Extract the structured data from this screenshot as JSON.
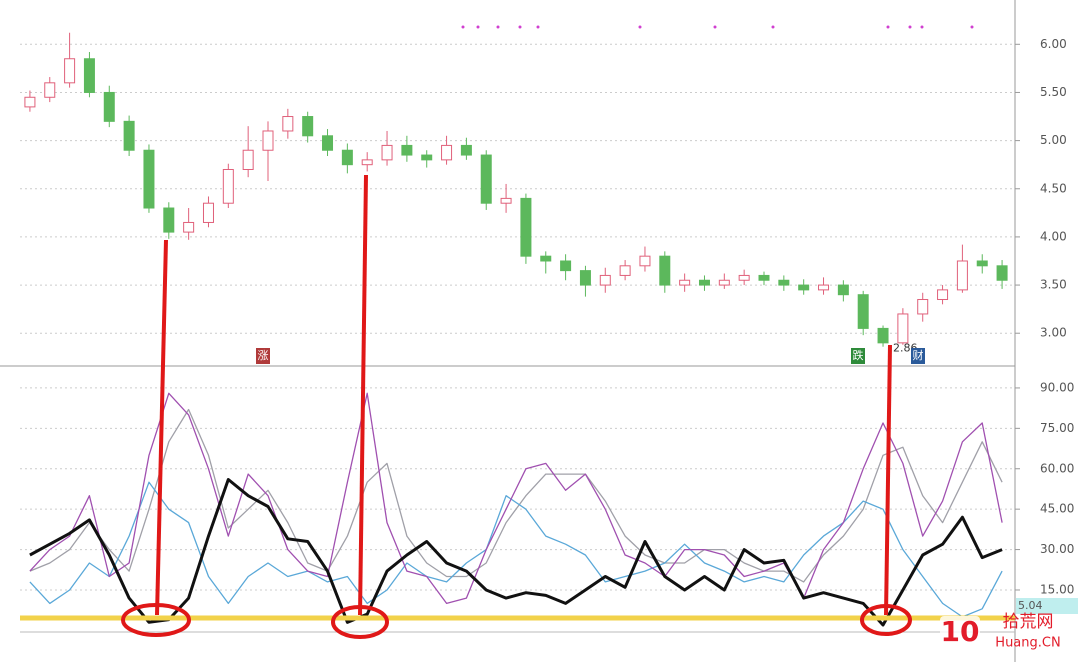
{
  "chart_data": [
    {
      "type": "candlestick",
      "up_color": "#e0607a",
      "down_color": "#5cb85c",
      "open": [
        5.35,
        5.45,
        5.6,
        5.85,
        5.5,
        5.2,
        4.9,
        4.3,
        4.05,
        4.15,
        4.35,
        4.7,
        4.9,
        5.1,
        5.25,
        5.05,
        4.9,
        4.75,
        4.8,
        4.95,
        4.85,
        4.8,
        4.95,
        4.85,
        4.35,
        4.4,
        3.8,
        3.75,
        3.65,
        3.5,
        3.6,
        3.7,
        3.8,
        3.5,
        3.55,
        3.5,
        3.55,
        3.6,
        3.55,
        3.5,
        3.45,
        3.5,
        3.4,
        3.05,
        2.9,
        3.2,
        3.35,
        3.45,
        3.75,
        3.7
      ],
      "high": [
        5.52,
        5.66,
        6.12,
        5.92,
        5.57,
        5.26,
        4.96,
        4.36,
        4.3,
        4.42,
        4.76,
        5.15,
        5.2,
        5.33,
        5.3,
        5.12,
        4.97,
        4.88,
        5.1,
        5.05,
        4.9,
        5.05,
        5.03,
        4.9,
        4.55,
        4.45,
        3.85,
        3.82,
        3.7,
        3.68,
        3.76,
        3.9,
        3.85,
        3.62,
        3.6,
        3.62,
        3.66,
        3.64,
        3.6,
        3.56,
        3.58,
        3.55,
        3.44,
        3.08,
        3.26,
        3.42,
        3.5,
        3.92,
        3.82,
        3.76
      ],
      "low": [
        5.3,
        5.4,
        5.55,
        5.45,
        5.14,
        4.84,
        4.25,
        3.98,
        3.97,
        4.1,
        4.3,
        4.62,
        4.58,
        5.02,
        4.98,
        4.84,
        4.66,
        4.68,
        4.74,
        4.78,
        4.72,
        4.75,
        4.8,
        4.28,
        4.25,
        3.72,
        3.62,
        3.55,
        3.38,
        3.42,
        3.55,
        3.64,
        3.42,
        3.43,
        3.44,
        3.46,
        3.5,
        3.5,
        3.44,
        3.4,
        3.4,
        3.33,
        2.98,
        2.86,
        2.88,
        3.12,
        3.3,
        3.42,
        3.62,
        3.46
      ],
      "close": [
        5.45,
        5.6,
        5.85,
        5.5,
        5.2,
        4.9,
        4.3,
        4.05,
        4.15,
        4.35,
        4.7,
        4.9,
        5.1,
        5.25,
        5.05,
        4.9,
        4.75,
        4.8,
        4.95,
        4.85,
        4.8,
        4.95,
        4.85,
        4.35,
        4.4,
        3.8,
        3.75,
        3.65,
        3.5,
        3.6,
        3.7,
        3.8,
        3.5,
        3.55,
        3.5,
        3.55,
        3.6,
        3.55,
        3.5,
        3.45,
        3.5,
        3.4,
        3.05,
        2.9,
        3.2,
        3.35,
        3.45,
        3.75,
        3.7,
        3.55
      ],
      "ylim": [
        2.67,
        6.46
      ],
      "yticks": [
        {
          "value": 3,
          "label": "3.00"
        },
        {
          "value": 3.5,
          "label": "3.50"
        },
        {
          "value": 4,
          "label": "4.00"
        },
        {
          "value": 4.5,
          "label": "4.50"
        },
        {
          "value": 5,
          "label": "5.00"
        },
        {
          "value": 5.5,
          "label": "5.50"
        },
        {
          "value": 6,
          "label": "6.00"
        }
      ],
      "grid": true,
      "low_label": "2.86",
      "annotations": [
        "涨",
        "跌",
        "财"
      ]
    },
    {
      "type": "line",
      "series": [
        {
          "color": "#a0a0a8",
          "values": [
            22,
            25,
            30,
            40,
            30,
            22,
            45,
            70,
            82,
            65,
            38,
            45,
            52,
            40,
            25,
            22,
            35,
            55,
            62,
            35,
            25,
            20,
            20,
            25,
            40,
            50,
            58,
            58,
            58,
            48,
            35,
            28,
            25,
            25,
            30,
            30,
            25,
            22,
            22,
            18,
            28,
            35,
            45,
            65,
            68,
            50,
            40,
            55,
            70,
            55
          ]
        },
        {
          "color": "#5aa8d8",
          "values": [
            18,
            10,
            15,
            25,
            20,
            35,
            55,
            45,
            40,
            20,
            10,
            20,
            25,
            20,
            22,
            18,
            20,
            10,
            15,
            25,
            20,
            18,
            25,
            30,
            50,
            45,
            35,
            32,
            28,
            18,
            20,
            22,
            25,
            32,
            25,
            22,
            18,
            20,
            18,
            28,
            35,
            40,
            48,
            45,
            30,
            20,
            10,
            5,
            8,
            22
          ]
        },
        {
          "color": "#a050b0",
          "values": [
            22,
            30,
            35,
            50,
            20,
            25,
            65,
            88,
            80,
            60,
            35,
            58,
            50,
            30,
            22,
            20,
            55,
            88,
            40,
            22,
            20,
            10,
            12,
            30,
            45,
            60,
            62,
            52,
            58,
            45,
            28,
            25,
            20,
            30,
            30,
            28,
            20,
            22,
            25,
            12,
            30,
            40,
            60,
            77,
            62,
            35,
            48,
            70,
            77,
            40
          ]
        },
        {
          "color": "#111111",
          "values": [
            28,
            32,
            36,
            41,
            28,
            12,
            3,
            4,
            12,
            35,
            56,
            50,
            46,
            34,
            33,
            22,
            3,
            6,
            22,
            28,
            33,
            25,
            22,
            15,
            12,
            14,
            13,
            10,
            15,
            20,
            16,
            33,
            20,
            15,
            20,
            15,
            30,
            25,
            26,
            12,
            14,
            12,
            10,
            2,
            15,
            28,
            32,
            42,
            27,
            30
          ]
        }
      ],
      "ylim": [
        -0.6,
        97.4
      ],
      "yticks": [
        {
          "value": 15,
          "label": "15.00"
        },
        {
          "value": 30,
          "label": "30.00"
        },
        {
          "value": 45,
          "label": "45.00"
        },
        {
          "value": 60,
          "label": "60.00"
        },
        {
          "value": 75,
          "label": "75.00"
        },
        {
          "value": 90,
          "label": "90.00"
        }
      ],
      "grid": true,
      "last_label": "5.04"
    }
  ],
  "watermark": {
    "logo": "10",
    "name": "拾荒网",
    "site": "Huang.CN"
  }
}
